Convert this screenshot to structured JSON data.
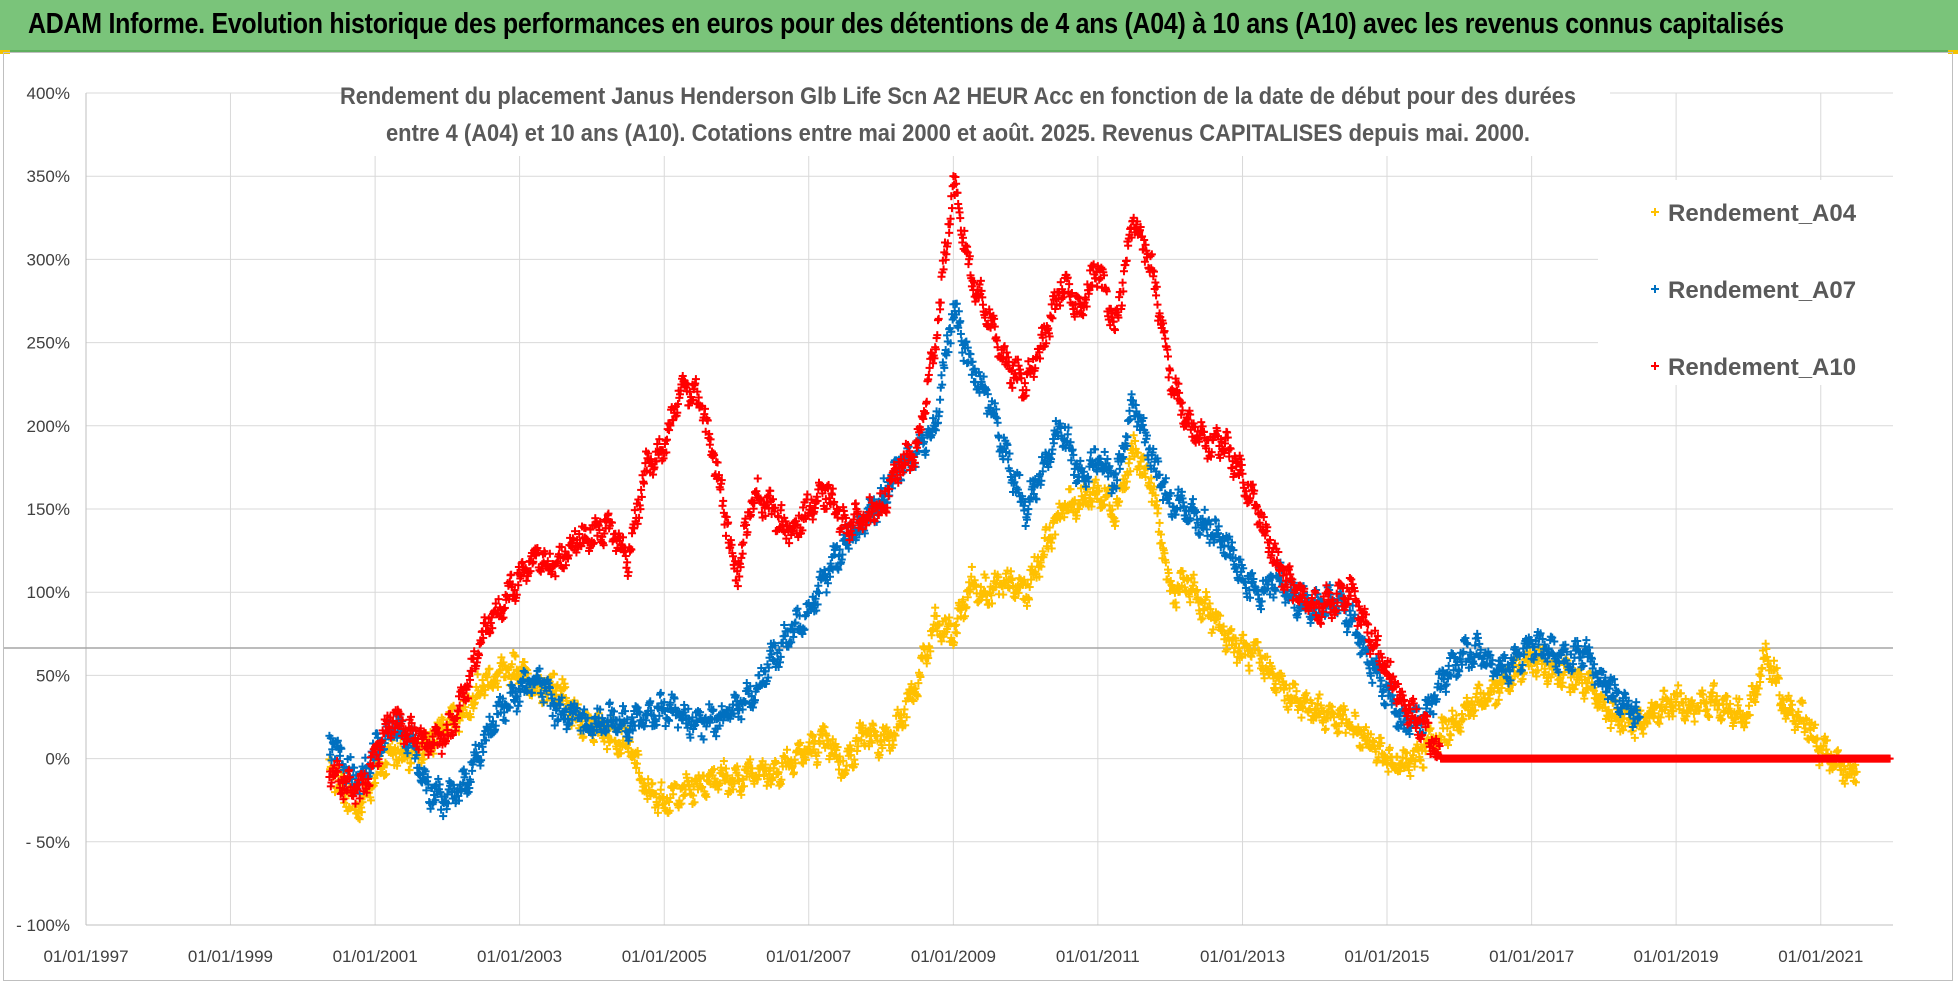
{
  "banner": {
    "text": "ADAM Informe. Evolution historique des performances en euros pour des détentions de 4 ans (A04) à 10 ans (A10) avec les revenus connus capitalisés"
  },
  "colors": {
    "banner": "#7ac47a",
    "A04": "#ffc000",
    "A07": "#0070c0",
    "A10": "#ff0000",
    "grid": "#d9d9d9",
    "text": "#404040"
  },
  "chart_data": {
    "type": "scatter",
    "title_lines": [
      "Rendement du placement Janus Henderson Glb Life Scn A2 HEUR Acc en fonction de la date de début pour des durées",
      "entre 4 (A04) et 10 ans (A10). Cotations entre mai 2000 et août. 2025. Revenus CAPITALISES depuis mai. 2000."
    ],
    "x_ticks": [
      "01/01/1997",
      "01/01/1999",
      "01/01/2001",
      "01/01/2003",
      "01/01/2005",
      "01/01/2007",
      "01/01/2009",
      "01/01/2011",
      "01/01/2013",
      "01/01/2015",
      "01/01/2017",
      "01/01/2019",
      "01/01/2021"
    ],
    "y_ticks": [
      "400%",
      "350%",
      "300%",
      "250%",
      "200%",
      "150%",
      "100%",
      "50%",
      "0%",
      "- 50%",
      "- 100%"
    ],
    "xlim": [
      "1997-01-01",
      "2022-01-01"
    ],
    "ylim": [
      -100,
      400
    ],
    "grid": true,
    "legend_position": "top-right",
    "series": [
      {
        "name": "Rendement_A04",
        "color": "#ffc000",
        "points": [
          [
            "2000-05-15",
            -5
          ],
          [
            "2000-08-01",
            -20
          ],
          [
            "2000-10-15",
            -30
          ],
          [
            "2001-01-01",
            -10
          ],
          [
            "2001-04-01",
            5
          ],
          [
            "2001-07-01",
            0
          ],
          [
            "2001-10-01",
            10
          ],
          [
            "2002-01-01",
            20
          ],
          [
            "2002-04-01",
            30
          ],
          [
            "2002-07-01",
            45
          ],
          [
            "2002-10-01",
            50
          ],
          [
            "2003-01-01",
            55
          ],
          [
            "2003-04-01",
            40
          ],
          [
            "2003-07-01",
            45
          ],
          [
            "2003-10-01",
            25
          ],
          [
            "2004-01-01",
            20
          ],
          [
            "2004-04-01",
            15
          ],
          [
            "2004-07-01",
            10
          ],
          [
            "2004-10-01",
            -20
          ],
          [
            "2005-01-01",
            -25
          ],
          [
            "2005-04-01",
            -20
          ],
          [
            "2005-07-01",
            -15
          ],
          [
            "2005-10-01",
            -10
          ],
          [
            "2006-01-01",
            -15
          ],
          [
            "2006-04-01",
            -5
          ],
          [
            "2006-07-01",
            -10
          ],
          [
            "2006-10-01",
            0
          ],
          [
            "2007-01-01",
            5
          ],
          [
            "2007-04-01",
            10
          ],
          [
            "2007-07-01",
            -5
          ],
          [
            "2007-10-01",
            15
          ],
          [
            "2008-01-01",
            10
          ],
          [
            "2008-04-01",
            20
          ],
          [
            "2008-07-01",
            45
          ],
          [
            "2008-10-01",
            80
          ],
          [
            "2009-01-01",
            75
          ],
          [
            "2009-04-01",
            105
          ],
          [
            "2009-07-01",
            100
          ],
          [
            "2009-10-01",
            105
          ],
          [
            "2010-01-01",
            100
          ],
          [
            "2010-04-01",
            125
          ],
          [
            "2010-07-01",
            150
          ],
          [
            "2010-10-01",
            155
          ],
          [
            "2011-01-01",
            160
          ],
          [
            "2011-04-01",
            150
          ],
          [
            "2011-07-01",
            185
          ],
          [
            "2011-10-01",
            165
          ],
          [
            "2012-01-01",
            100
          ],
          [
            "2012-04-01",
            105
          ],
          [
            "2012-07-01",
            90
          ],
          [
            "2012-10-01",
            75
          ],
          [
            "2013-01-01",
            65
          ],
          [
            "2013-04-01",
            60
          ],
          [
            "2013-07-01",
            45
          ],
          [
            "2013-10-01",
            35
          ],
          [
            "2014-01-01",
            30
          ],
          [
            "2014-04-01",
            25
          ],
          [
            "2014-07-01",
            20
          ],
          [
            "2014-10-01",
            10
          ],
          [
            "2015-01-01",
            0
          ],
          [
            "2015-04-01",
            -5
          ],
          [
            "2015-07-01",
            5
          ],
          [
            "2015-10-01",
            15
          ],
          [
            "2016-01-01",
            25
          ],
          [
            "2016-04-01",
            35
          ],
          [
            "2016-07-01",
            40
          ],
          [
            "2016-10-01",
            50
          ],
          [
            "2017-01-01",
            60
          ],
          [
            "2017-04-01",
            55
          ],
          [
            "2017-07-01",
            50
          ],
          [
            "2017-10-01",
            45
          ],
          [
            "2018-01-01",
            30
          ],
          [
            "2018-04-01",
            25
          ],
          [
            "2018-07-01",
            20
          ],
          [
            "2018-10-01",
            30
          ],
          [
            "2019-01-01",
            35
          ],
          [
            "2019-04-01",
            30
          ],
          [
            "2019-07-01",
            35
          ],
          [
            "2019-10-01",
            30
          ],
          [
            "2020-01-01",
            25
          ],
          [
            "2020-04-01",
            65
          ],
          [
            "2020-07-01",
            30
          ],
          [
            "2020-10-01",
            25
          ],
          [
            "2021-01-01",
            5
          ],
          [
            "2021-04-01",
            -5
          ],
          [
            "2021-07-01",
            -8
          ]
        ]
      },
      {
        "name": "Rendement_A07",
        "color": "#0070c0",
        "points": [
          [
            "2000-05-15",
            10
          ],
          [
            "2000-08-01",
            -5
          ],
          [
            "2000-10-15",
            -15
          ],
          [
            "2001-01-01",
            5
          ],
          [
            "2001-04-01",
            20
          ],
          [
            "2001-07-01",
            10
          ],
          [
            "2001-10-01",
            -20
          ],
          [
            "2002-01-01",
            -25
          ],
          [
            "2002-04-01",
            -15
          ],
          [
            "2002-07-01",
            10
          ],
          [
            "2002-10-01",
            30
          ],
          [
            "2003-01-01",
            40
          ],
          [
            "2003-04-01",
            50
          ],
          [
            "2003-07-01",
            30
          ],
          [
            "2003-10-01",
            25
          ],
          [
            "2004-01-01",
            20
          ],
          [
            "2004-04-01",
            25
          ],
          [
            "2004-07-01",
            20
          ],
          [
            "2004-10-01",
            25
          ],
          [
            "2005-01-01",
            30
          ],
          [
            "2005-04-01",
            25
          ],
          [
            "2005-07-01",
            20
          ],
          [
            "2005-10-01",
            25
          ],
          [
            "2006-01-01",
            30
          ],
          [
            "2006-04-01",
            40
          ],
          [
            "2006-07-01",
            60
          ],
          [
            "2006-10-01",
            75
          ],
          [
            "2007-01-01",
            90
          ],
          [
            "2007-04-01",
            110
          ],
          [
            "2007-07-01",
            130
          ],
          [
            "2007-10-01",
            140
          ],
          [
            "2008-01-01",
            155
          ],
          [
            "2008-04-01",
            175
          ],
          [
            "2008-07-01",
            185
          ],
          [
            "2008-10-01",
            200
          ],
          [
            "2009-01-01",
            270
          ],
          [
            "2009-04-01",
            235
          ],
          [
            "2009-07-01",
            215
          ],
          [
            "2009-10-01",
            180
          ],
          [
            "2010-01-01",
            150
          ],
          [
            "2010-04-01",
            175
          ],
          [
            "2010-07-01",
            200
          ],
          [
            "2010-10-01",
            170
          ],
          [
            "2011-01-01",
            180
          ],
          [
            "2011-04-01",
            165
          ],
          [
            "2011-07-01",
            215
          ],
          [
            "2011-10-01",
            180
          ],
          [
            "2012-01-01",
            155
          ],
          [
            "2012-04-01",
            150
          ],
          [
            "2012-07-01",
            140
          ],
          [
            "2012-10-01",
            130
          ],
          [
            "2013-01-01",
            110
          ],
          [
            "2013-04-01",
            100
          ],
          [
            "2013-07-01",
            110
          ],
          [
            "2013-10-01",
            95
          ],
          [
            "2014-01-01",
            90
          ],
          [
            "2014-04-01",
            95
          ],
          [
            "2014-07-01",
            85
          ],
          [
            "2014-10-01",
            60
          ],
          [
            "2015-01-01",
            40
          ],
          [
            "2015-04-01",
            20
          ],
          [
            "2015-07-01",
            25
          ],
          [
            "2015-10-01",
            45
          ],
          [
            "2016-01-01",
            60
          ],
          [
            "2016-04-01",
            65
          ],
          [
            "2016-07-01",
            55
          ],
          [
            "2016-10-01",
            55
          ],
          [
            "2017-01-01",
            70
          ],
          [
            "2017-04-01",
            65
          ],
          [
            "2017-07-01",
            60
          ],
          [
            "2017-10-01",
            65
          ],
          [
            "2018-01-01",
            45
          ],
          [
            "2018-04-01",
            35
          ],
          [
            "2018-07-01",
            25
          ]
        ]
      },
      {
        "name": "Rendement_A10",
        "color": "#ff0000",
        "points": [
          [
            "2000-05-15",
            -5
          ],
          [
            "2000-08-01",
            -15
          ],
          [
            "2000-10-15",
            -20
          ],
          [
            "2001-01-01",
            0
          ],
          [
            "2001-04-01",
            25
          ],
          [
            "2001-07-01",
            15
          ],
          [
            "2001-10-01",
            10
          ],
          [
            "2002-01-01",
            15
          ],
          [
            "2002-04-01",
            40
          ],
          [
            "2002-07-01",
            75
          ],
          [
            "2002-10-01",
            90
          ],
          [
            "2003-01-01",
            110
          ],
          [
            "2003-04-01",
            120
          ],
          [
            "2003-07-01",
            115
          ],
          [
            "2003-10-01",
            130
          ],
          [
            "2004-01-01",
            135
          ],
          [
            "2004-04-01",
            140
          ],
          [
            "2004-07-01",
            120
          ],
          [
            "2004-10-01",
            175
          ],
          [
            "2005-01-01",
            185
          ],
          [
            "2005-04-01",
            225
          ],
          [
            "2005-07-01",
            215
          ],
          [
            "2005-10-01",
            170
          ],
          [
            "2006-01-01",
            110
          ],
          [
            "2006-04-01",
            160
          ],
          [
            "2006-07-01",
            150
          ],
          [
            "2006-10-01",
            135
          ],
          [
            "2007-01-01",
            150
          ],
          [
            "2007-04-01",
            160
          ],
          [
            "2007-07-01",
            140
          ],
          [
            "2007-10-01",
            145
          ],
          [
            "2008-01-01",
            150
          ],
          [
            "2008-04-01",
            175
          ],
          [
            "2008-07-01",
            185
          ],
          [
            "2008-10-01",
            250
          ],
          [
            "2009-01-01",
            345
          ],
          [
            "2009-04-01",
            290
          ],
          [
            "2009-07-01",
            265
          ],
          [
            "2009-10-01",
            235
          ],
          [
            "2010-01-01",
            225
          ],
          [
            "2010-04-01",
            250
          ],
          [
            "2010-07-01",
            285
          ],
          [
            "2010-10-01",
            270
          ],
          [
            "2011-01-01",
            295
          ],
          [
            "2011-04-01",
            260
          ],
          [
            "2011-07-01",
            325
          ],
          [
            "2011-10-01",
            295
          ],
          [
            "2012-01-01",
            230
          ],
          [
            "2012-04-01",
            200
          ],
          [
            "2012-07-01",
            190
          ],
          [
            "2012-10-01",
            190
          ],
          [
            "2013-01-01",
            170
          ],
          [
            "2013-04-01",
            145
          ],
          [
            "2013-07-01",
            115
          ],
          [
            "2013-10-01",
            100
          ],
          [
            "2014-01-01",
            90
          ],
          [
            "2014-04-01",
            95
          ],
          [
            "2014-07-01",
            100
          ],
          [
            "2014-10-01",
            75
          ],
          [
            "2015-01-01",
            55
          ],
          [
            "2015-04-01",
            30
          ],
          [
            "2015-07-01",
            20
          ],
          [
            "2015-10-01",
            0
          ],
          [
            "2016-07-01",
            0
          ],
          [
            "2017-07-01",
            0
          ],
          [
            "2018-07-01",
            0
          ],
          [
            "2019-07-01",
            0
          ],
          [
            "2020-07-01",
            0
          ],
          [
            "2021-07-01",
            0
          ],
          [
            "2021-12-15",
            0
          ]
        ]
      }
    ]
  }
}
